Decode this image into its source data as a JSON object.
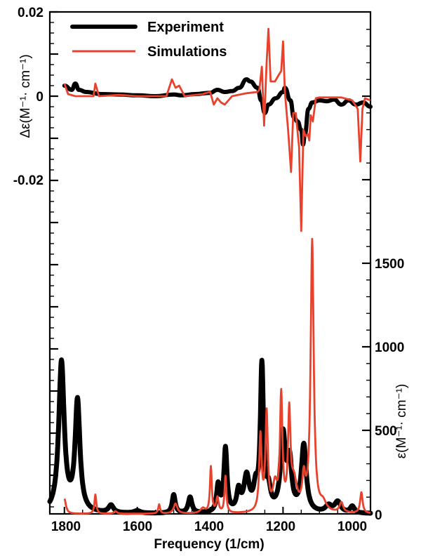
{
  "chart_data": {
    "type": "line",
    "title": "",
    "xlabel": "Frequency (1/cm)",
    "xlim": [
      1840,
      960
    ],
    "x_ticks": [
      1800,
      1600,
      1400,
      1200,
      1000
    ],
    "x_tick_labels": [
      "1800",
      "1600",
      "1400",
      "1200",
      "1000"
    ],
    "grid": false,
    "legend": {
      "position": "top-left",
      "entries": [
        {
          "label": "Experiment",
          "color": "#000000"
        },
        {
          "label": "Simulations",
          "color": "#e8412c"
        }
      ]
    },
    "panels": [
      {
        "name": "VCD",
        "ylabel": "Δε(M⁻¹· cm⁻¹)",
        "ylabel_side": "left",
        "ylim": [
          -0.02,
          0.02
        ],
        "y_ticks": [
          0.02,
          0,
          -0.02
        ],
        "y_tick_labels": [
          "0.02",
          "0",
          "-0.02"
        ],
        "series": [
          {
            "name": "Experiment",
            "color": "#000000",
            "x": [
              1800,
              1780,
              1770,
              1760,
              1740,
              1700,
              1650,
              1600,
              1550,
              1500,
              1480,
              1440,
              1400,
              1380,
              1360,
              1340,
              1320,
              1300,
              1290,
              1270,
              1260,
              1250,
              1240,
              1220,
              1200,
              1195,
              1180,
              1170,
              1160,
              1150,
              1145,
              1140,
              1130,
              1120,
              1100,
              1080,
              1060,
              1040,
              1020,
              1000,
              980,
              960
            ],
            "values": [
              0.0025,
              0.0015,
              0.003,
              0.0015,
              0.001,
              0.0005,
              0.0004,
              0.0002,
              0.0,
              0.0004,
              0.0002,
              0.0005,
              0.0008,
              0.0015,
              0.001,
              0.0012,
              0.002,
              0.004,
              0.0035,
              0.002,
              -0.001,
              -0.004,
              -0.002,
              -0.0005,
              0.001,
              0.002,
              -0.001,
              -0.005,
              -0.006,
              -0.008,
              -0.0115,
              -0.009,
              -0.003,
              -0.0015,
              -0.001,
              -0.0012,
              -0.0008,
              -0.002,
              -0.001,
              -0.002,
              -0.0015,
              -0.0025
            ]
          },
          {
            "name": "Simulations",
            "color": "#e8412c",
            "x": [
              1800,
              1790,
              1770,
              1720,
              1715,
              1705,
              1650,
              1600,
              1520,
              1505,
              1495,
              1485,
              1470,
              1420,
              1400,
              1390,
              1380,
              1370,
              1360,
              1340,
              1300,
              1270,
              1265,
              1258,
              1252,
              1245,
              1240,
              1234,
              1222,
              1212,
              1205,
              1200,
              1195,
              1186,
              1178,
              1172,
              1165,
              1156,
              1150,
              1144,
              1138,
              1132,
              1128,
              1124,
              1118,
              1110,
              1100,
              1080,
              1040,
              1010,
              995,
              988,
              982,
              975,
              960
            ],
            "values": [
              0.003,
              0.0005,
              0.0,
              0.0,
              0.003,
              0.0,
              0.0003,
              0.0,
              0.0,
              0.004,
              0.002,
              0.0025,
              0.0,
              0.0005,
              0.001,
              -0.002,
              -0.0005,
              -0.0015,
              -0.002,
              0.0,
              0.0007,
              0.001,
              0.0015,
              0.007,
              -0.007,
              0.008,
              0.016,
              0.0035,
              0.0035,
              0.005,
              0.006,
              0.013,
              0.001,
              -0.008,
              -0.018,
              -0.004,
              -0.004,
              -0.012,
              -0.032,
              -0.008,
              -0.0095,
              -0.009,
              -0.0105,
              -0.0045,
              -0.006,
              -0.0005,
              -0.0003,
              -0.0003,
              -0.0003,
              -0.001,
              -0.003,
              -0.0155,
              -0.003,
              -0.0005,
              -0.001
            ]
          }
        ]
      },
      {
        "name": "IR",
        "ylabel": "ε(M⁻¹· cm⁻¹)",
        "ylabel_side": "right",
        "ylim": [
          0,
          1800
        ],
        "y_ticks": [
          0,
          500,
          1000,
          1500
        ],
        "y_tick_labels": [
          "0",
          "500",
          "1000",
          "1500"
        ],
        "series": [
          {
            "name": "Experiment",
            "color": "#000000",
            "peaks": [
              {
                "x": 1808,
                "y": 900,
                "w": 9
              },
              {
                "x": 1764,
                "y": 660,
                "w": 8
              },
              {
                "x": 1672,
                "y": 45,
                "w": 8
              },
              {
                "x": 1600,
                "y": 15,
                "w": 10
              },
              {
                "x": 1500,
                "y": 110,
                "w": 5
              },
              {
                "x": 1455,
                "y": 95,
                "w": 6
              },
              {
                "x": 1378,
                "y": 160,
                "w": 5
              },
              {
                "x": 1358,
                "y": 380,
                "w": 5
              },
              {
                "x": 1322,
                "y": 120,
                "w": 6
              },
              {
                "x": 1300,
                "y": 210,
                "w": 9
              },
              {
                "x": 1275,
                "y": 130,
                "w": 7
              },
              {
                "x": 1258,
                "y": 860,
                "w": 5
              },
              {
                "x": 1240,
                "y": 120,
                "w": 7
              },
              {
                "x": 1200,
                "y": 450,
                "w": 8
              },
              {
                "x": 1182,
                "y": 280,
                "w": 7
              },
              {
                "x": 1143,
                "y": 400,
                "w": 8
              },
              {
                "x": 1075,
                "y": 40,
                "w": 10
              },
              {
                "x": 1050,
                "y": 65,
                "w": 10
              },
              {
                "x": 1010,
                "y": 40,
                "w": 7
              }
            ]
          },
          {
            "name": "Simulations",
            "color": "#e8412c",
            "x_start": 1800,
            "peaks": [
              {
                "x": 1800,
                "y": 90,
                "w": 5
              },
              {
                "x": 1715,
                "y": 115,
                "w": 3
              },
              {
                "x": 1660,
                "y": 15,
                "w": 5
              },
              {
                "x": 1540,
                "y": 55,
                "w": 3
              },
              {
                "x": 1495,
                "y": 60,
                "w": 6
              },
              {
                "x": 1420,
                "y": 30,
                "w": 8
              },
              {
                "x": 1398,
                "y": 275,
                "w": 3
              },
              {
                "x": 1380,
                "y": 90,
                "w": 4
              },
              {
                "x": 1358,
                "y": 220,
                "w": 3
              },
              {
                "x": 1262,
                "y": 450,
                "w": 4
              },
              {
                "x": 1245,
                "y": 580,
                "w": 4
              },
              {
                "x": 1222,
                "y": 150,
                "w": 7
              },
              {
                "x": 1205,
                "y": 680,
                "w": 4
              },
              {
                "x": 1183,
                "y": 560,
                "w": 4
              },
              {
                "x": 1170,
                "y": 170,
                "w": 10
              },
              {
                "x": 1143,
                "y": 180,
                "w": 5
              },
              {
                "x": 1120,
                "y": 1620,
                "w": 5
              },
              {
                "x": 1090,
                "y": 50,
                "w": 10
              },
              {
                "x": 1040,
                "y": 60,
                "w": 6
              },
              {
                "x": 985,
                "y": 125,
                "w": 4
              }
            ]
          }
        ]
      }
    ]
  },
  "legend": {
    "experiment_label": "Experiment",
    "simulations_label": "Simulations"
  },
  "axes": {
    "x_title": "Frequency (1/cm)",
    "left_title": "Δε(M⁻¹· cm⁻¹)",
    "right_title": "ε(M⁻¹· cm⁻¹)",
    "left_ticks": [
      "0.02",
      "0",
      "-0.02"
    ],
    "right_ticks": [
      "1500",
      "1000",
      "500",
      "0"
    ],
    "bottom_ticks": [
      "1800",
      "1600",
      "1400",
      "1200",
      "1000"
    ]
  }
}
